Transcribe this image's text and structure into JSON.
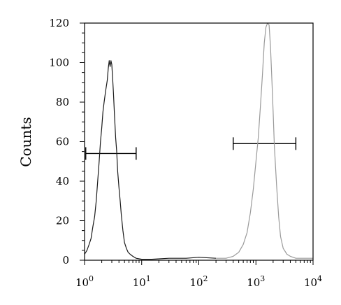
{
  "chart_data": {
    "type": "line",
    "title": "",
    "xlabel": "",
    "ylabel": "Counts",
    "xscale": "log",
    "xlim": [
      1,
      10000
    ],
    "ylim": [
      0,
      120
    ],
    "grid": false,
    "legend": "none",
    "x_ticks": [
      {
        "base": "10",
        "exp": "0",
        "value": 1
      },
      {
        "base": "10",
        "exp": "1",
        "value": 10
      },
      {
        "base": "10",
        "exp": "2",
        "value": 100
      },
      {
        "base": "10",
        "exp": "3",
        "value": 1000
      },
      {
        "base": "10",
        "exp": "4",
        "value": 10000
      }
    ],
    "y_ticks": [
      "0",
      "20",
      "40",
      "60",
      "80",
      "100",
      "120"
    ],
    "series": [
      {
        "color": "#1a1a1a",
        "x": [
          1.0,
          1.1,
          1.2,
          1.3,
          1.4,
          1.5,
          1.6,
          1.7,
          1.8,
          1.9,
          2.0,
          2.1,
          2.2,
          2.35,
          2.5,
          2.6,
          2.7,
          2.8,
          2.9,
          3.0,
          3.1,
          3.2,
          3.35,
          3.5,
          3.65,
          3.8,
          4.0,
          4.2,
          4.4,
          4.7,
          5.0,
          5.4,
          5.8,
          6.3,
          7.0,
          8.0,
          10.0,
          15.0,
          30.0,
          60.0,
          100.0,
          200.0
        ],
        "y": [
          3,
          5,
          8,
          11,
          17,
          22,
          30,
          40,
          50,
          60,
          67,
          75,
          80,
          86,
          91,
          97,
          101,
          98,
          101,
          99,
          92,
          85,
          73,
          62,
          55,
          45,
          37,
          30,
          23,
          15,
          9,
          6,
          4,
          3,
          2,
          1,
          0.5,
          0.5,
          1,
          1,
          1.5,
          1
        ]
      },
      {
        "color": "#9a9a9a",
        "x": [
          200,
          300,
          400,
          500,
          600,
          700,
          800,
          900,
          1000,
          1100,
          1200,
          1300,
          1400,
          1500,
          1600,
          1700,
          1800,
          1900,
          2000,
          2100,
          2300,
          2500,
          2700,
          3000,
          3500,
          4000,
          5000,
          7000,
          10000
        ],
        "y": [
          1,
          1,
          2,
          4,
          8,
          14,
          24,
          36,
          50,
          62,
          78,
          94,
          110,
          118,
          120,
          119,
          108,
          92,
          75,
          58,
          38,
          22,
          12,
          6,
          3,
          2,
          1,
          1,
          1
        ]
      }
    ],
    "gates": [
      {
        "x_start": 1.05,
        "x_end": 8.0,
        "y": 54
      },
      {
        "x_start": 400,
        "x_end": 5000,
        "y": 59
      }
    ]
  }
}
